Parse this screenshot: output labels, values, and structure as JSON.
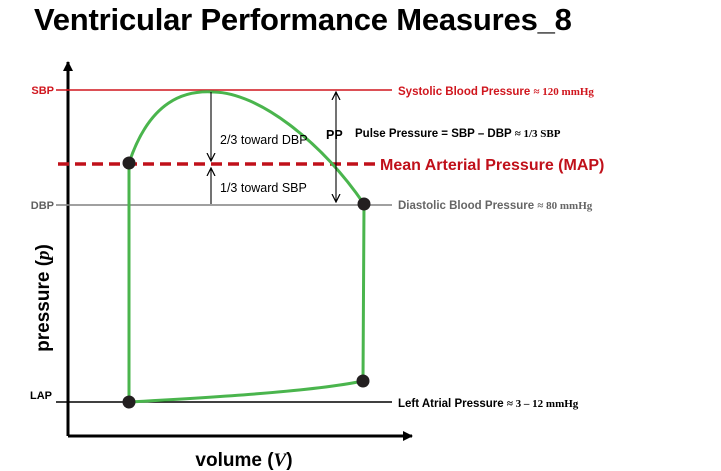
{
  "title": "Ventricular Performance Measures_8",
  "axes": {
    "y_label_text": "pressure (",
    "y_label_var": "p",
    "y_label_close": ")",
    "x_label_text": "volume (",
    "x_label_var": "V",
    "x_label_close": ")"
  },
  "levels": {
    "sbp": {
      "tick": "SBP",
      "name": "Systolic Blood Pressure",
      "value": "≈ 120 mmHg",
      "color": "#d0161e"
    },
    "map": {
      "name": "Mean Arterial Pressure (MAP)",
      "color": "#c0101a"
    },
    "dbp": {
      "tick": "DBP",
      "name": "Diastolic Blood Pressure",
      "value": "≈ 80 mmHg",
      "color": "#808080"
    },
    "lap": {
      "tick": "LAP",
      "name": "Left Atrial Pressure",
      "value": "≈ 3 – 12 mmHg",
      "color": "#000000"
    }
  },
  "annotations": {
    "two_thirds": "2/3 toward DBP",
    "one_third": "1/3 toward SBP",
    "pp": "PP",
    "pulse_pressure": "Pulse Pressure = SBP – DBP",
    "pulse_pressure_ratio": "≈ 1/3 SBP"
  },
  "loop": {
    "color": "#4ab54d"
  }
}
